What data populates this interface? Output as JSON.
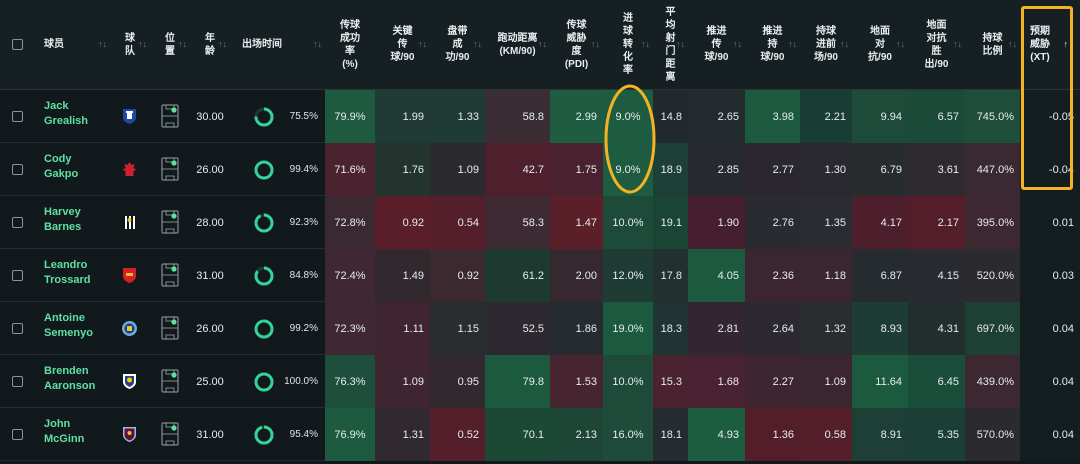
{
  "header": {
    "player": "球员",
    "team": "球\n队",
    "position": "位\n置",
    "age": "年\n龄",
    "minutes": "出场时间",
    "pass_success": "传球\n成功\n率\n(%)",
    "key_pass": "关键\n传\n球/90",
    "dribble": "盘带\n成\n功/90",
    "distance": "跑动距离\n(KM/90)",
    "pdi": "传球\n威胁\n度\n(PDI)",
    "shot_conv": "进\n球\n转\n化\n率",
    "shot_dist": "平\n均\n射\n门\n距\n离",
    "prog_pass": "推进\n传\n球/90",
    "prog_carry": "推进\n持\n球/90",
    "carry_prog": "持球\n进前\n场/90",
    "ground_duel": "地面\n对\n抗/90",
    "ground_won": "地面\n对抗\n胜\n出/90",
    "possession": "持球\n比例",
    "xt": "预期\n威胁\n(XT)",
    "sort_icon": "↑↓",
    "sort_active": "↑"
  },
  "colors": {
    "accent_green": "#5fe0a3",
    "highlight_yellow": "#f5b324"
  },
  "rows": [
    {
      "name": "Jack\nGrealish",
      "team": "everton",
      "age": "30.00",
      "minutes_pct": "75.5%",
      "minutes_frac": 0.755,
      "v": [
        "79.9%",
        "1.99",
        "1.33",
        "58.8",
        "2.99",
        "9.0%",
        "14.8",
        "2.65",
        "3.98",
        "2.21",
        "9.94",
        "6.57",
        "745.0%",
        "-0.05"
      ]
    },
    {
      "name": "Cody\nGakpo",
      "team": "liverpool",
      "age": "26.00",
      "minutes_pct": "99.4%",
      "minutes_frac": 0.994,
      "v": [
        "71.6%",
        "1.76",
        "1.09",
        "42.7",
        "1.75",
        "9.0%",
        "18.9",
        "2.85",
        "2.77",
        "1.30",
        "6.79",
        "3.61",
        "447.0%",
        "-0.04"
      ]
    },
    {
      "name": "Harvey\nBarnes",
      "team": "newcastle",
      "age": "28.00",
      "minutes_pct": "92.3%",
      "minutes_frac": 0.923,
      "v": [
        "72.8%",
        "0.92",
        "0.54",
        "58.3",
        "1.47",
        "10.0%",
        "19.1",
        "1.90",
        "2.76",
        "1.35",
        "4.17",
        "2.17",
        "395.0%",
        "0.01"
      ]
    },
    {
      "name": "Leandro\nTrossard",
      "team": "arsenal",
      "age": "31.00",
      "minutes_pct": "84.8%",
      "minutes_frac": 0.848,
      "v": [
        "72.4%",
        "1.49",
        "0.92",
        "61.2",
        "2.00",
        "12.0%",
        "17.8",
        "4.05",
        "2.36",
        "1.18",
        "6.87",
        "4.15",
        "520.0%",
        "0.03"
      ]
    },
    {
      "name": "Antoine\nSemenyo",
      "team": "mancity",
      "age": "26.00",
      "minutes_pct": "99.2%",
      "minutes_frac": 0.992,
      "v": [
        "72.3%",
        "1.11",
        "1.15",
        "52.5",
        "1.86",
        "19.0%",
        "18.3",
        "2.81",
        "2.64",
        "1.32",
        "8.93",
        "4.31",
        "697.0%",
        "0.04"
      ]
    },
    {
      "name": "Brenden\nAaronson",
      "team": "leeds",
      "age": "25.00",
      "minutes_pct": "100.0%",
      "minutes_frac": 1.0,
      "v": [
        "76.3%",
        "1.09",
        "0.95",
        "79.8",
        "1.53",
        "10.0%",
        "15.3",
        "1.68",
        "2.27",
        "1.09",
        "11.64",
        "6.45",
        "439.0%",
        "0.04"
      ]
    },
    {
      "name": "John\nMcGinn",
      "team": "astonvilla",
      "age": "31.00",
      "minutes_pct": "95.4%",
      "minutes_frac": 0.954,
      "v": [
        "76.9%",
        "1.31",
        "0.52",
        "70.1",
        "2.13",
        "16.0%",
        "18.1",
        "4.93",
        "1.36",
        "0.58",
        "8.91",
        "5.35",
        "570.0%",
        "0.04"
      ]
    }
  ],
  "heat": [
    [
      "#1d5a40",
      "#203a34",
      "#203a34",
      "#3a2d34",
      "#1e5d42",
      "#1d5c40",
      "#22292d",
      "#232b2f",
      "#1b5a3f",
      "#1a3d33",
      "#1d4a39",
      "#1b4b38",
      "#1e4d3a",
      "#141d20"
    ],
    [
      "#4a2230",
      "#23342f",
      "#2a2a2f",
      "#4e1f2c",
      "#4a222f",
      "#1d5c40",
      "#1d3f35",
      "#262a2f",
      "#2a2730",
      "#2a2930",
      "#282c2f",
      "#2f2a30",
      "#3a2931",
      "#141d20"
    ],
    [
      "#3b2931",
      "#5a1e2a",
      "#551e2b",
      "#3d2a33",
      "#5b1f2a",
      "#1e4a39",
      "#1a4434",
      "#451f2d",
      "#2a2a31",
      "#2b2c31",
      "#4d1f2c",
      "#541d2a",
      "#3d2731",
      "#141d20"
    ],
    [
      "#3f2831",
      "#32292f",
      "#3c2930",
      "#1d3a30",
      "#36282f",
      "#1e3c34",
      "#22302f",
      "#1b5a3f",
      "#3a2530",
      "#3a2530",
      "#262b2f",
      "#2a2b30",
      "#2a2a2f",
      "#141d20"
    ],
    [
      "#3f2831",
      "#402430",
      "#292d30",
      "#2e2930",
      "#262b2f",
      "#1c5a3f",
      "#1f3433",
      "#322630",
      "#2d2930",
      "#2a2c30",
      "#1d3d34",
      "#232f2f",
      "#1d3f34",
      "#141d20"
    ],
    [
      "#1d4f3c",
      "#3f2530",
      "#32292f",
      "#1b5a3f",
      "#462430",
      "#1e4a39",
      "#4a2230",
      "#482230",
      "#3e2630",
      "#3b2630",
      "#1b5a3f",
      "#1b4e3a",
      "#3d2832",
      "#141d20"
    ],
    [
      "#1d5a40",
      "#30292f",
      "#541e2a",
      "#1c4836",
      "#1e4636",
      "#1e4b3a",
      "#252c30",
      "#1c5d41",
      "#531e2a",
      "#551e2b",
      "#1e3f35",
      "#1c3f35",
      "#2a2a2f",
      "#141d20"
    ]
  ]
}
